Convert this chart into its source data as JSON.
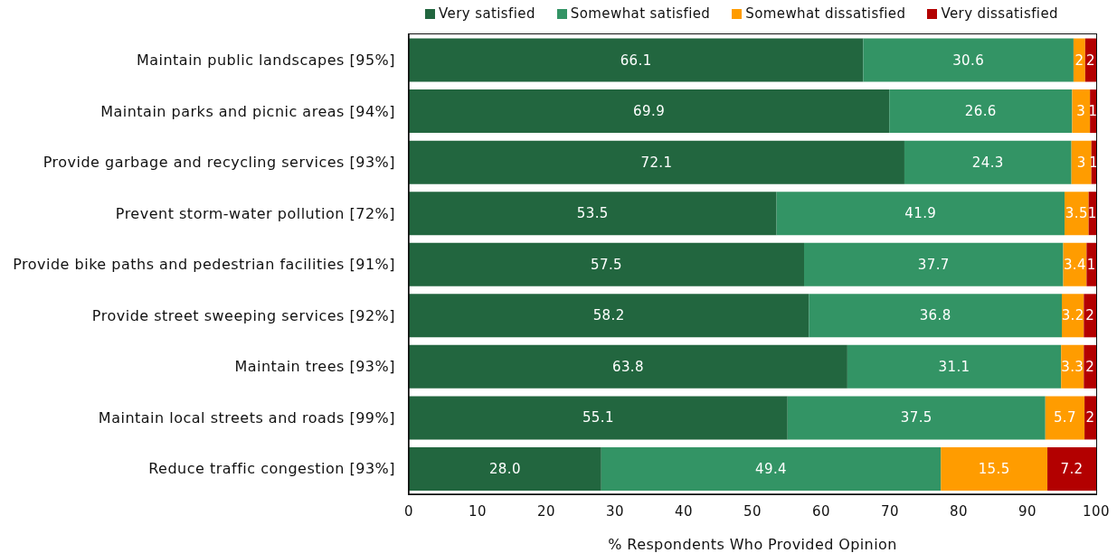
{
  "chart_data": {
    "type": "bar",
    "orientation": "horizontal",
    "stacked": true,
    "xlabel": "% Respondents Who Provided Opinion",
    "categories": [
      "Maintain public landscapes [95%]",
      "Maintain parks and picnic areas [94%]",
      "Provide garbage and recycling services [93%]",
      "Prevent storm-water pollution [72%]",
      "Provide bike paths and pedestrian facilities [91%]",
      "Provide street sweeping services [92%]",
      "Maintain trees [93%]",
      "Maintain local streets and roads [99%]",
      "Reduce traffic congestion [93%]"
    ],
    "series": [
      {
        "name": "Very satisfied",
        "color": "#22663f",
        "values": [
          66.1,
          69.9,
          72.1,
          53.5,
          57.5,
          58.2,
          63.8,
          55.1,
          28.0
        ],
        "value_labels": [
          "66.1",
          "69.9",
          "72.1",
          "53.5",
          "57.5",
          "58.2",
          "63.8",
          "55.1",
          "28.0"
        ]
      },
      {
        "name": "Somewhat satisfied",
        "color": "#339465",
        "values": [
          30.6,
          26.6,
          24.3,
          41.9,
          37.7,
          36.8,
          31.1,
          37.5,
          49.4
        ],
        "value_labels": [
          "30.6",
          "26.6",
          "24.3",
          "41.9",
          "37.7",
          "36.8",
          "31.1",
          "37.5",
          "49.4"
        ]
      },
      {
        "name": "Somewhat dissatisfied",
        "color": "#ff9c00",
        "values": [
          1.7,
          2.6,
          2.9,
          3.5,
          3.4,
          3.2,
          3.3,
          5.7,
          15.5
        ],
        "value_labels": [
          "2",
          "3",
          "3",
          "3.5",
          "3.4",
          "3.2",
          "3.3",
          "5.7",
          "15.5"
        ]
      },
      {
        "name": "Very dissatisfied",
        "color": "#b30000",
        "values": [
          1.6,
          0.9,
          0.7,
          1.1,
          1.4,
          1.8,
          1.8,
          1.7,
          7.2
        ],
        "value_labels": [
          "2",
          "1",
          "1",
          "1",
          "1",
          "2",
          "2",
          "2",
          "7.2"
        ]
      }
    ],
    "xlim": [
      0,
      100
    ],
    "xticks": [
      0,
      10,
      20,
      30,
      40,
      50,
      60,
      70,
      80,
      90,
      100
    ],
    "legend": "top"
  }
}
